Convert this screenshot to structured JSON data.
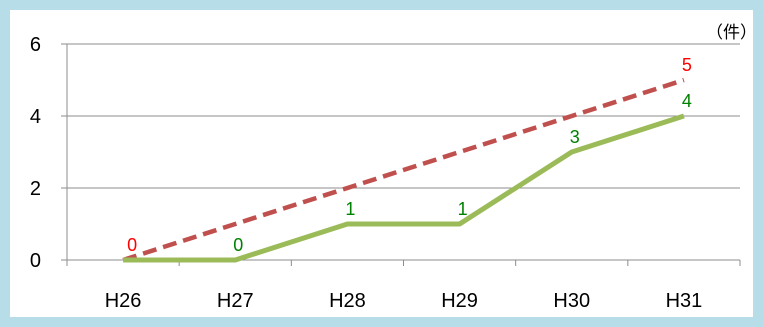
{
  "chart_data": {
    "type": "line",
    "categories": [
      "H26",
      "H27",
      "H28",
      "H29",
      "H30",
      "H31"
    ],
    "unit": "（件）",
    "ylim": [
      0,
      6
    ],
    "yticks": [
      0,
      2,
      4,
      6
    ],
    "grid": true,
    "series": [
      {
        "values": [
          0,
          0,
          1,
          1,
          3,
          4
        ],
        "labels": [
          "",
          "0",
          "1",
          "1",
          "3",
          "4"
        ],
        "color": "#9bbb59",
        "style": "solid",
        "label_color": "#008000"
      },
      {
        "values": [
          0,
          1,
          2,
          3,
          4,
          5
        ],
        "labels": [
          "0",
          "",
          "",
          "",
          "",
          "5"
        ],
        "color": "#c0504d",
        "style": "dashed",
        "label_color": "#ff0000"
      }
    ]
  }
}
